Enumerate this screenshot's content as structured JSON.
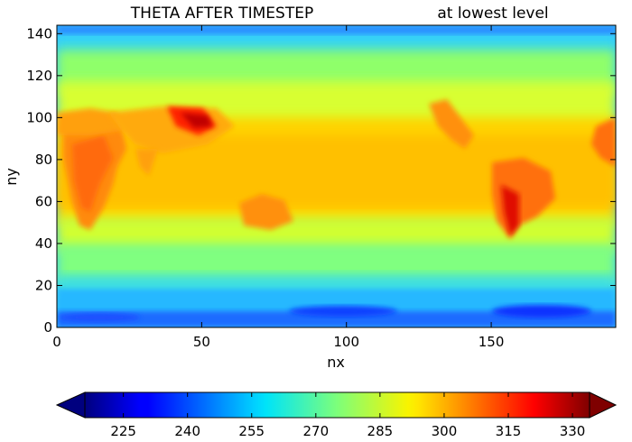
{
  "chart_data": {
    "type": "heatmap",
    "title_left": "THETA AFTER TIMESTEP",
    "title_right": "at lowest level",
    "xlabel": "nx",
    "ylabel": "ny",
    "xlim": [
      0,
      193
    ],
    "ylim": [
      0,
      144
    ],
    "xticks": [
      "0",
      "50",
      "100",
      "150"
    ],
    "yticks": [
      "0",
      "20",
      "40",
      "60",
      "80",
      "100",
      "120",
      "140"
    ],
    "colorbar": {
      "vmin": 216,
      "vmax": 334,
      "ticks": [
        "225",
        "240",
        "255",
        "270",
        "285",
        "300",
        "315",
        "330"
      ],
      "extend": "both",
      "colormap": "jet"
    },
    "value_range_shown": [
      225,
      330
    ],
    "grid": false
  }
}
